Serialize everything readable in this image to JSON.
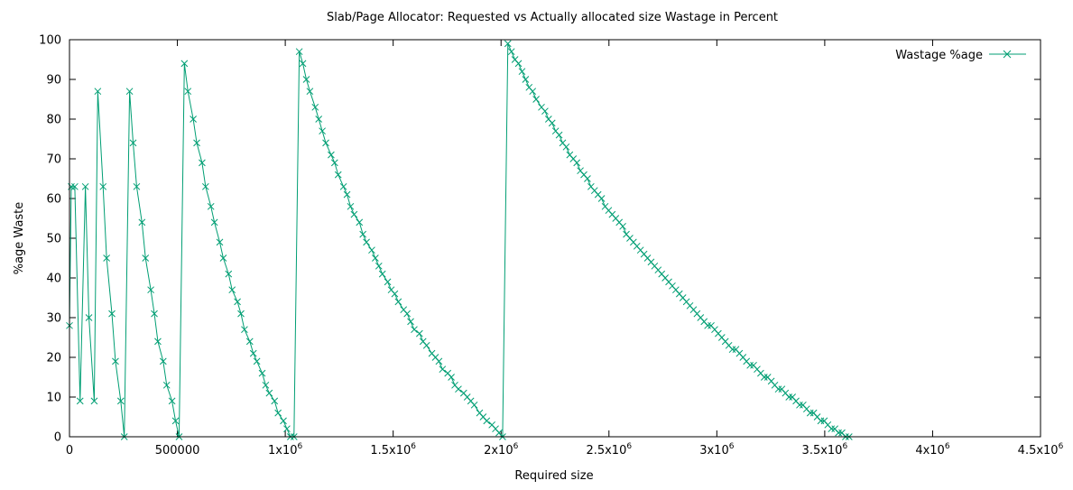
{
  "chart_data": {
    "type": "line",
    "title": "Slab/Page Allocator: Requested vs Actually allocated size Wastage in Percent",
    "xlabel": "Required size",
    "ylabel": "%age Waste",
    "xlim": [
      0,
      4500000
    ],
    "ylim": [
      0,
      100
    ],
    "grid": false,
    "legend_position": "top-right",
    "x_ticks": [
      {
        "value": 0,
        "base": "0",
        "exp": ""
      },
      {
        "value": 500000,
        "base": "500000",
        "exp": ""
      },
      {
        "value": 1000000,
        "base": "1x10",
        "exp": "6"
      },
      {
        "value": 1500000,
        "base": "1.5x10",
        "exp": "6"
      },
      {
        "value": 2000000,
        "base": "2x10",
        "exp": "6"
      },
      {
        "value": 2500000,
        "base": "2.5x10",
        "exp": "6"
      },
      {
        "value": 3000000,
        "base": "3x10",
        "exp": "6"
      },
      {
        "value": 3500000,
        "base": "3.5x10",
        "exp": "6"
      },
      {
        "value": 4000000,
        "base": "4x10",
        "exp": "6"
      },
      {
        "value": 4500000,
        "base": "4.5x10",
        "exp": "6"
      }
    ],
    "y_ticks": [
      "0",
      "10",
      "20",
      "30",
      "40",
      "50",
      "60",
      "70",
      "80",
      "90",
      "100"
    ],
    "series": [
      {
        "name": "Wastage %age",
        "color": "#009e73",
        "marker": "x",
        "points": [
          [
            0,
            28
          ],
          [
            8192,
            63
          ],
          [
            24576,
            63
          ],
          [
            49152,
            9
          ],
          [
            73728,
            63
          ],
          [
            90112,
            30
          ],
          [
            114688,
            9
          ],
          [
            131072,
            87
          ],
          [
            155648,
            63
          ],
          [
            172032,
            45
          ],
          [
            196608,
            31
          ],
          [
            212992,
            19
          ],
          [
            237568,
            9
          ],
          [
            253952,
            0
          ],
          [
            278528,
            87
          ],
          [
            294912,
            74
          ],
          [
            311296,
            63
          ],
          [
            335872,
            54
          ],
          [
            352256,
            45
          ],
          [
            376832,
            37
          ],
          [
            393216,
            31
          ],
          [
            409600,
            24
          ],
          [
            434176,
            19
          ],
          [
            450560,
            13
          ],
          [
            475136,
            9
          ],
          [
            491520,
            4
          ],
          [
            507904,
            0
          ],
          [
            532480,
            94
          ],
          [
            548864,
            87
          ],
          [
            573440,
            80
          ],
          [
            589824,
            74
          ],
          [
            614400,
            69
          ],
          [
            630784,
            63
          ],
          [
            655360,
            58
          ],
          [
            671744,
            54
          ],
          [
            696320,
            49
          ],
          [
            712704,
            45
          ],
          [
            737280,
            41
          ],
          [
            753664,
            37
          ],
          [
            778240,
            34
          ],
          [
            794624,
            31
          ],
          [
            811008,
            27
          ],
          [
            835584,
            24
          ],
          [
            851968,
            21
          ],
          [
            868352,
            19
          ],
          [
            892928,
            16
          ],
          [
            909312,
            13
          ],
          [
            925696,
            11
          ],
          [
            950272,
            9
          ],
          [
            966656,
            6
          ],
          [
            991232,
            4
          ],
          [
            1007616,
            2
          ],
          [
            1024000,
            0
          ],
          [
            1040384,
            0
          ],
          [
            1064960,
            97
          ],
          [
            1081344,
            94
          ],
          [
            1097728,
            90
          ],
          [
            1114112,
            87
          ],
          [
            1138688,
            83
          ],
          [
            1155072,
            80
          ],
          [
            1171456,
            77
          ],
          [
            1187840,
            74
          ],
          [
            1212416,
            71
          ],
          [
            1228800,
            69
          ],
          [
            1245184,
            66
          ],
          [
            1269760,
            63
          ],
          [
            1286144,
            61
          ],
          [
            1302528,
            58
          ],
          [
            1318912,
            56
          ],
          [
            1343488,
            54
          ],
          [
            1359872,
            51
          ],
          [
            1376256,
            49
          ],
          [
            1400832,
            47
          ],
          [
            1417216,
            45
          ],
          [
            1433600,
            43
          ],
          [
            1449984,
            41
          ],
          [
            1474560,
            39
          ],
          [
            1490944,
            37
          ],
          [
            1507328,
            36
          ],
          [
            1523712,
            34
          ],
          [
            1548288,
            32
          ],
          [
            1564672,
            31
          ],
          [
            1581056,
            29
          ],
          [
            1597440,
            27
          ],
          [
            1622016,
            26
          ],
          [
            1638400,
            24
          ],
          [
            1654784,
            23
          ],
          [
            1679360,
            21
          ],
          [
            1695744,
            20
          ],
          [
            1712128,
            19
          ],
          [
            1728512,
            17
          ],
          [
            1753088,
            16
          ],
          [
            1769472,
            15
          ],
          [
            1785856,
            13
          ],
          [
            1802240,
            12
          ],
          [
            1826816,
            11
          ],
          [
            1843200,
            10
          ],
          [
            1859584,
            9
          ],
          [
            1875968,
            8
          ],
          [
            1900544,
            6
          ],
          [
            1916928,
            5
          ],
          [
            1933312,
            4
          ],
          [
            1957888,
            3
          ],
          [
            1974272,
            2
          ],
          [
            1990656,
            1
          ],
          [
            2007040,
            0
          ],
          [
            2031616,
            99
          ],
          [
            2048000,
            97
          ],
          [
            2064384,
            95
          ],
          [
            2080768,
            94
          ],
          [
            2097152,
            92
          ],
          [
            2113536,
            90
          ],
          [
            2129920,
            88
          ],
          [
            2146304,
            87
          ],
          [
            2162688,
            85
          ],
          [
            2187264,
            83
          ],
          [
            2203648,
            82
          ],
          [
            2220032,
            80
          ],
          [
            2236416,
            79
          ],
          [
            2252800,
            77
          ],
          [
            2269184,
            76
          ],
          [
            2285568,
            74
          ],
          [
            2301952,
            73
          ],
          [
            2318336,
            71
          ],
          [
            2334720,
            70
          ],
          [
            2351104,
            69
          ],
          [
            2367488,
            67
          ],
          [
            2383872,
            66
          ],
          [
            2400256,
            65
          ],
          [
            2416640,
            63
          ],
          [
            2433024,
            62
          ],
          [
            2449408,
            61
          ],
          [
            2465792,
            60
          ],
          [
            2482176,
            58
          ],
          [
            2498560,
            57
          ],
          [
            2514944,
            56
          ],
          [
            2531328,
            55
          ],
          [
            2547712,
            54
          ],
          [
            2564096,
            53
          ],
          [
            2580480,
            51
          ],
          [
            2596864,
            50
          ],
          [
            2613248,
            49
          ],
          [
            2629632,
            48
          ],
          [
            2646016,
            47
          ],
          [
            2662400,
            46
          ],
          [
            2678784,
            45
          ],
          [
            2695168,
            44
          ],
          [
            2711552,
            43
          ],
          [
            2727936,
            42
          ],
          [
            2744320,
            41
          ],
          [
            2760704,
            40
          ],
          [
            2777088,
            39
          ],
          [
            2793472,
            38
          ],
          [
            2809856,
            37
          ],
          [
            2826240,
            36
          ],
          [
            2842624,
            35
          ],
          [
            2859008,
            34
          ],
          [
            2875392,
            33
          ],
          [
            2891776,
            32
          ],
          [
            2908160,
            31
          ],
          [
            2924544,
            30
          ],
          [
            2940928,
            29
          ],
          [
            2957312,
            28
          ],
          [
            2973696,
            28
          ],
          [
            2990080,
            27
          ],
          [
            3006464,
            26
          ],
          [
            3022848,
            25
          ],
          [
            3039232,
            24
          ],
          [
            3055616,
            23
          ],
          [
            3072000,
            22
          ],
          [
            3088384,
            22
          ],
          [
            3104768,
            21
          ],
          [
            3121152,
            20
          ],
          [
            3137536,
            19
          ],
          [
            3153920,
            18
          ],
          [
            3170304,
            18
          ],
          [
            3186688,
            17
          ],
          [
            3203072,
            16
          ],
          [
            3219456,
            15
          ],
          [
            3235840,
            15
          ],
          [
            3252224,
            14
          ],
          [
            3268608,
            13
          ],
          [
            3284992,
            12
          ],
          [
            3301376,
            12
          ],
          [
            3317760,
            11
          ],
          [
            3334144,
            10
          ],
          [
            3350528,
            10
          ],
          [
            3366912,
            9
          ],
          [
            3383296,
            8
          ],
          [
            3399680,
            8
          ],
          [
            3416064,
            7
          ],
          [
            3432448,
            6
          ],
          [
            3448832,
            6
          ],
          [
            3465216,
            5
          ],
          [
            3481600,
            4
          ],
          [
            3497984,
            4
          ],
          [
            3514368,
            3
          ],
          [
            3530752,
            2
          ],
          [
            3547136,
            2
          ],
          [
            3563520,
            1
          ],
          [
            3579904,
            1
          ],
          [
            3596288,
            0
          ],
          [
            3612672,
            0
          ]
        ]
      }
    ]
  }
}
